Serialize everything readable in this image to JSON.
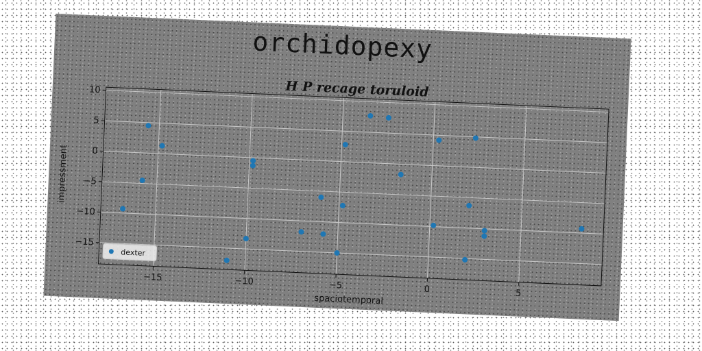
{
  "figure": {
    "suptitle": "orchidopexy"
  },
  "chart_data": {
    "type": "scatter",
    "title": "H P recage toruloid",
    "xlabel": "spaciotemporal",
    "ylabel": "impressment",
    "xlim": [
      -18,
      9.5
    ],
    "ylim": [
      -18.5,
      10.5
    ],
    "xticks": [
      -15,
      -10,
      -5,
      0,
      5
    ],
    "yticks": [
      10,
      5,
      0,
      -5,
      -10,
      -15
    ],
    "grid": true,
    "legend_position": "lower-left",
    "series": [
      {
        "name": "dexter",
        "color": "#1f77b4",
        "x": [
          -16.8,
          -15.6,
          -15.8,
          -14.8,
          -11.0,
          -10.0,
          -9.8,
          -9.8,
          -7.0,
          -6.0,
          -5.8,
          -5.0,
          -4.8,
          -4.8,
          -3.5,
          -2.5,
          -1.7,
          0.2,
          0.3,
          2.0,
          2.1,
          2.3,
          3.0,
          3.0,
          8.3
        ],
        "y": [
          -9.3,
          4.5,
          -4.5,
          1.3,
          -17.0,
          -13.3,
          -0.5,
          -1.3,
          -11.8,
          -6.0,
          -12.0,
          -15.0,
          -7.2,
          2.8,
          7.7,
          7.5,
          -1.7,
          -9.8,
          4.2,
          -15.2,
          -6.3,
          4.8,
          -10.3,
          -11.2,
          -9.3
        ]
      }
    ]
  }
}
